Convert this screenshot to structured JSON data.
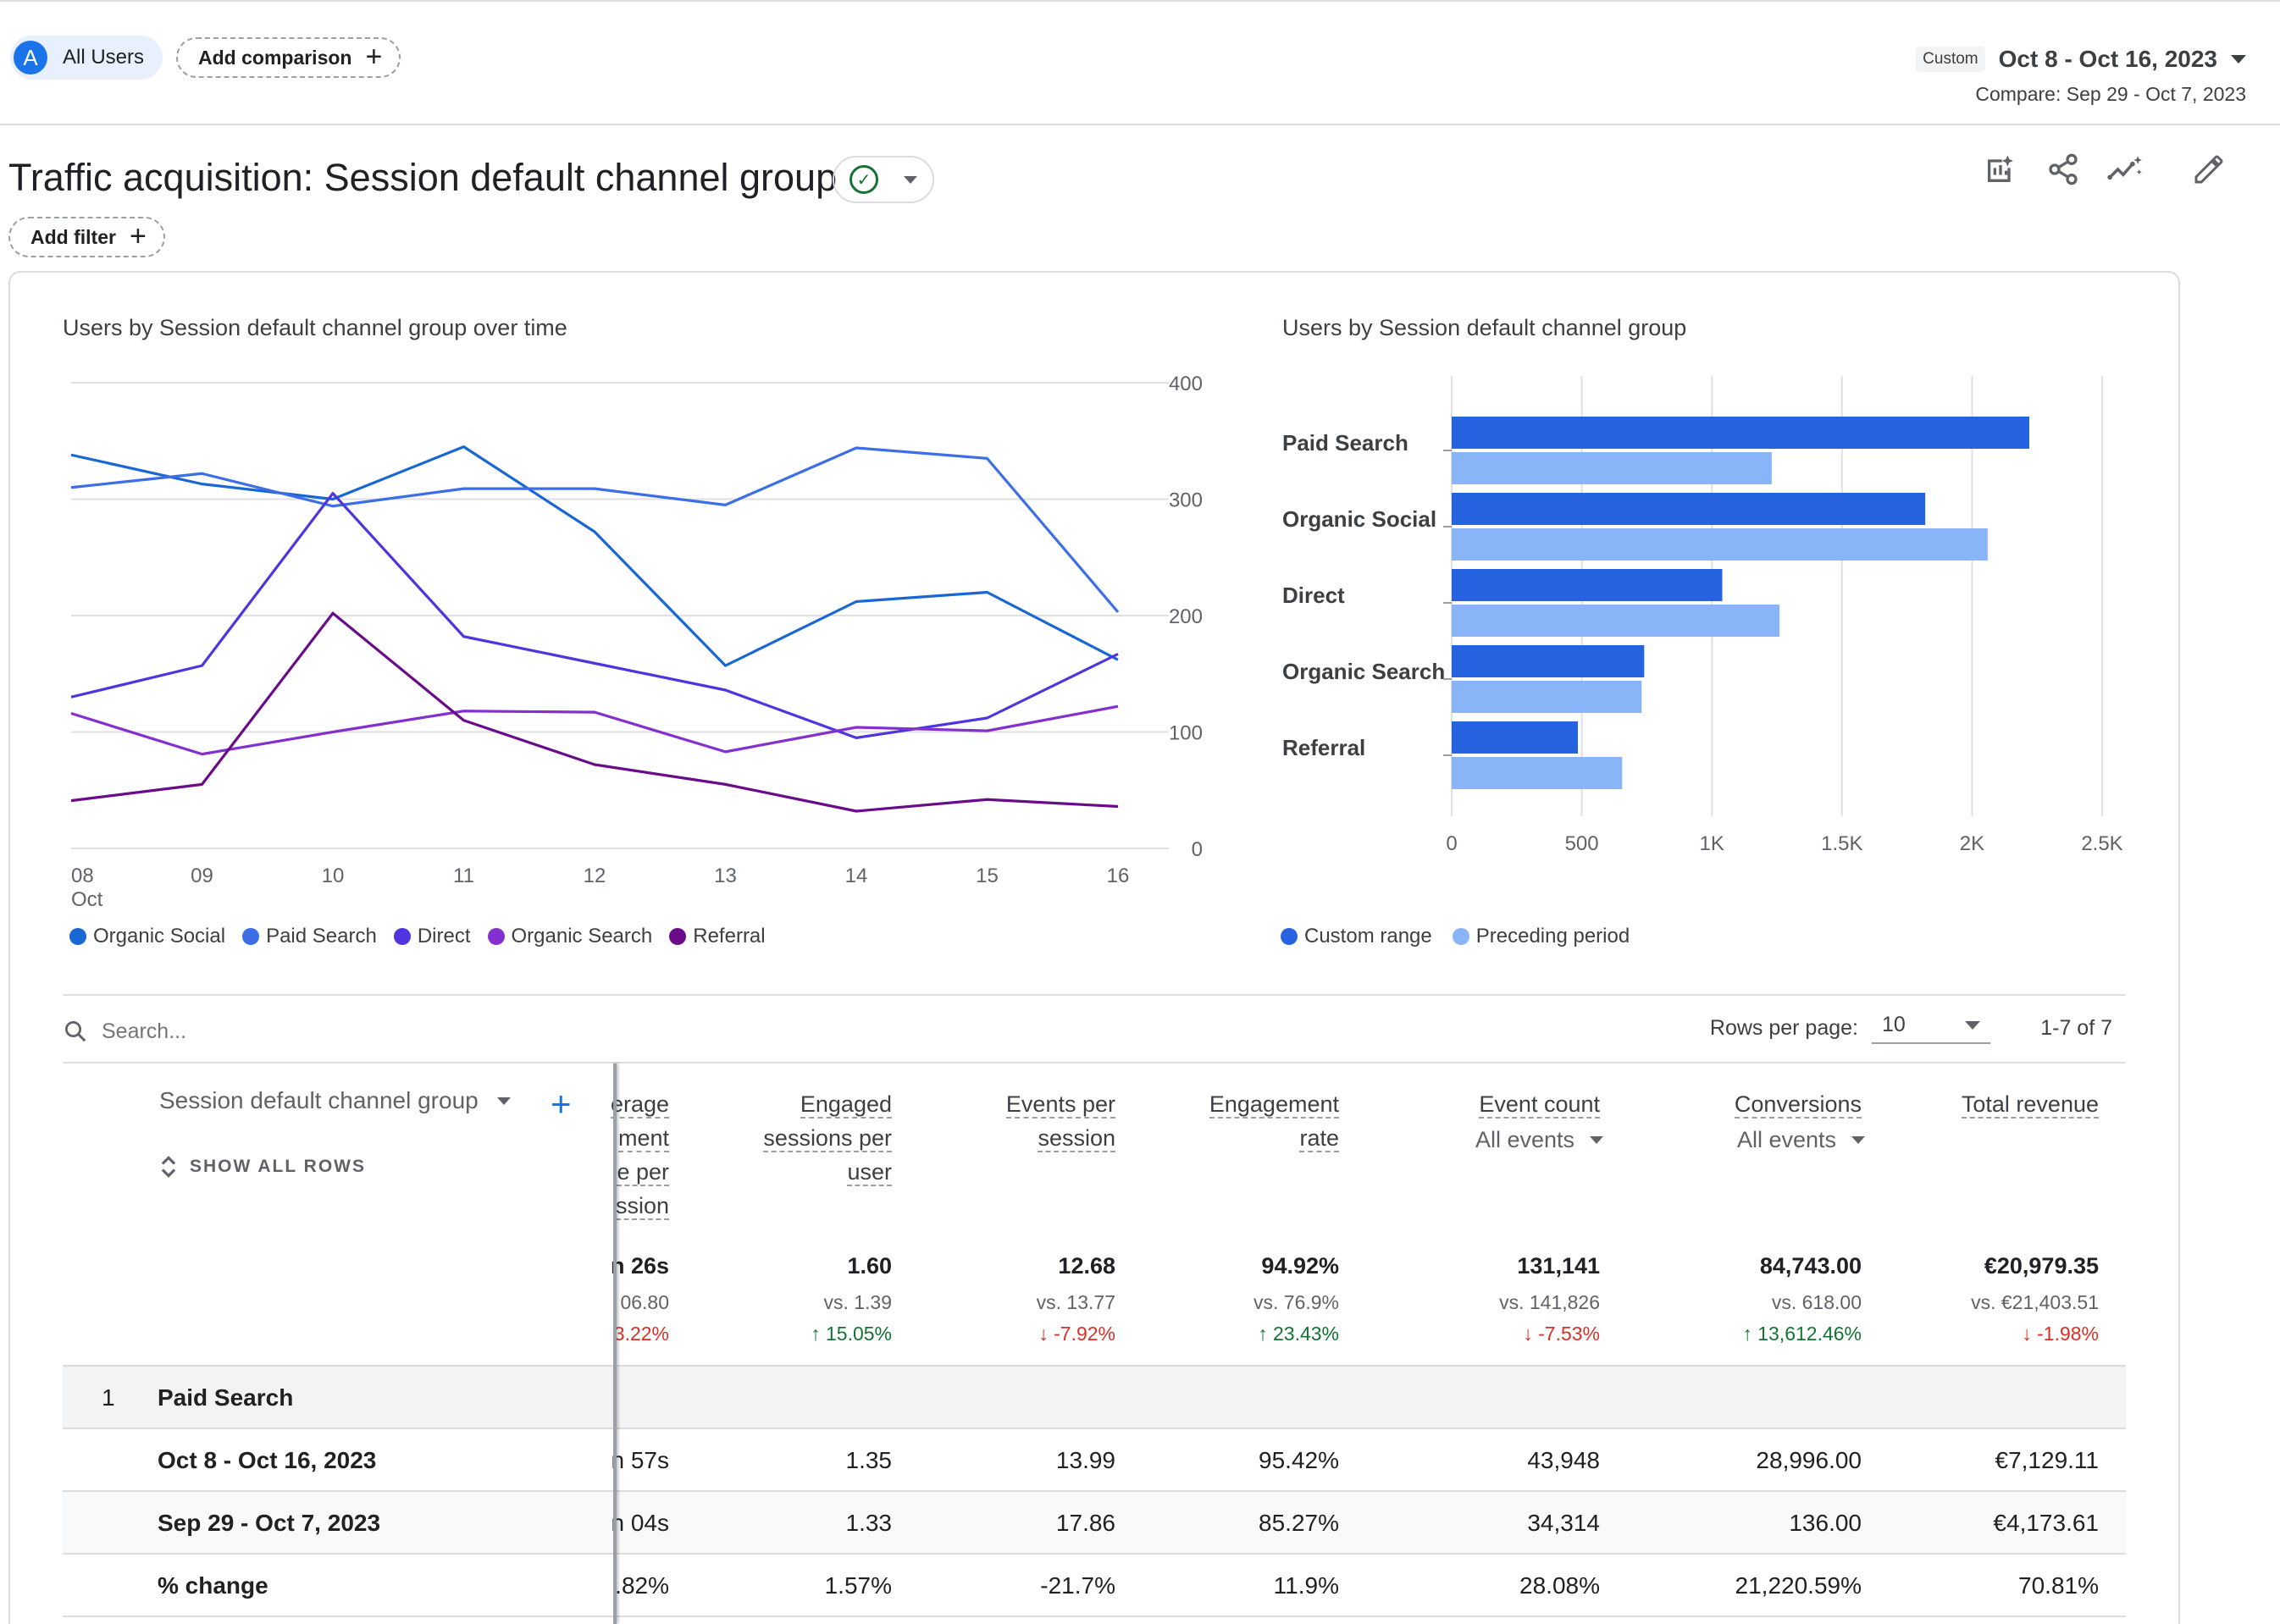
{
  "segment": {
    "avatar": "A",
    "label": "All Users"
  },
  "add_comparison": "Add comparison",
  "date": {
    "badge": "Custom",
    "range": "Oct 8 - Oct 16, 2023",
    "compare": "Compare: Sep 29 - Oct 7, 2023"
  },
  "page_title": "Traffic acquisition: Session default channel group",
  "add_filter": "Add filter",
  "toolbar_icons": [
    "customize-report-icon",
    "share-icon",
    "insights-icon",
    "edit-icon"
  ],
  "chart_data": [
    {
      "type": "line",
      "title": "Users by Session default channel group over time",
      "x": [
        "08",
        "09",
        "10",
        "11",
        "12",
        "13",
        "14",
        "15",
        "16"
      ],
      "x_sub_label": "Oct",
      "ylim": [
        0,
        400
      ],
      "y_ticks": [
        "400",
        "300",
        "200",
        "100",
        "0"
      ],
      "y_axis_side": "right",
      "series": [
        {
          "name": "Organic Social",
          "color": "#1967d2",
          "values": [
            338,
            313,
            300,
            345,
            272,
            157,
            212,
            220,
            162
          ]
        },
        {
          "name": "Paid Search",
          "color": "#3c6ee6",
          "values": [
            310,
            322,
            294,
            309,
            309,
            295,
            344,
            335,
            203
          ]
        },
        {
          "name": "Direct",
          "color": "#5034e0",
          "values": [
            130,
            157,
            305,
            182,
            159,
            136,
            95,
            112,
            167
          ]
        },
        {
          "name": "Organic Search",
          "color": "#8430ce",
          "values": [
            116,
            81,
            100,
            118,
            117,
            83,
            104,
            101,
            122
          ]
        },
        {
          "name": "Referral",
          "color": "#6a0b8a",
          "values": [
            41,
            55,
            202,
            110,
            72,
            55,
            32,
            42,
            36
          ]
        }
      ],
      "grid": true,
      "legend_position": "bottom"
    },
    {
      "type": "bar",
      "orientation": "horizontal",
      "title": "Users by Session default channel group",
      "categories": [
        "Paid Search",
        "Organic Social",
        "Direct",
        "Organic Search",
        "Referral"
      ],
      "series": [
        {
          "name": "Custom range",
          "color": "#2563e0",
          "values": [
            2220,
            1820,
            1040,
            740,
            485
          ]
        },
        {
          "name": "Preceding period",
          "color": "#8ab4f8",
          "values": [
            1230,
            2060,
            1260,
            730,
            655
          ]
        }
      ],
      "xlim": [
        0,
        2500
      ],
      "x_ticks": [
        "0",
        "500",
        "1K",
        "1.5K",
        "2K",
        "2.5K"
      ],
      "grid": true,
      "legend_position": "bottom"
    }
  ],
  "table": {
    "search_placeholder": "Search...",
    "rows_per_page_label": "Rows per page:",
    "rows_per_page_value": "10",
    "pagination": "1-7 of 7",
    "dimension_header": "Session default channel group",
    "show_all_rows": "SHOW ALL ROWS",
    "columns": [
      {
        "lines": [
          "erage",
          "ment",
          "e per",
          "ssion"
        ]
      },
      {
        "lines": [
          "Engaged",
          "sessions per",
          "user"
        ]
      },
      {
        "lines": [
          "Events per",
          "session"
        ]
      },
      {
        "lines": [
          "Engagement",
          "rate"
        ]
      },
      {
        "lines": [
          "Event count"
        ],
        "selector": "All events"
      },
      {
        "lines": [
          "Conversions"
        ],
        "selector": "All events"
      },
      {
        "lines": [
          "Total revenue"
        ]
      }
    ],
    "totals": [
      {
        "main": "n 26s",
        "vs": "06.80",
        "change": "3.22%",
        "dir": "down"
      },
      {
        "main": "1.60",
        "vs": "vs. 1.39",
        "change": "15.05%",
        "dir": "up"
      },
      {
        "main": "12.68",
        "vs": "vs. 13.77",
        "change": "-7.92%",
        "dir": "down"
      },
      {
        "main": "94.92%",
        "vs": "vs. 76.9%",
        "change": "23.43%",
        "dir": "up"
      },
      {
        "main": "131,141",
        "vs": "vs. 141,826",
        "change": "-7.53%",
        "dir": "down"
      },
      {
        "main": "84,743.00",
        "vs": "vs. 618.00",
        "change": "13,612.46%",
        "dir": "up"
      },
      {
        "main": "€20,979.35",
        "vs": "vs. €21,403.51",
        "change": "-1.98%",
        "dir": "down"
      }
    ],
    "group": {
      "index": "1",
      "label": "Paid Search"
    },
    "rows": [
      {
        "label": "Oct 8 - Oct 16, 2023",
        "values": [
          "n 57s",
          "1.35",
          "13.99",
          "95.42%",
          "43,948",
          "28,996.00",
          "€7,129.11"
        ]
      },
      {
        "label": "Sep 29 - Oct 7, 2023",
        "values": [
          "n 04s",
          "1.33",
          "17.86",
          "85.27%",
          "34,314",
          "136.00",
          "€4,173.61"
        ]
      },
      {
        "label": "% change",
        "values": [
          ".82%",
          "1.57%",
          "-21.7%",
          "11.9%",
          "28.08%",
          "21,220.59%",
          "70.81%"
        ]
      }
    ]
  }
}
